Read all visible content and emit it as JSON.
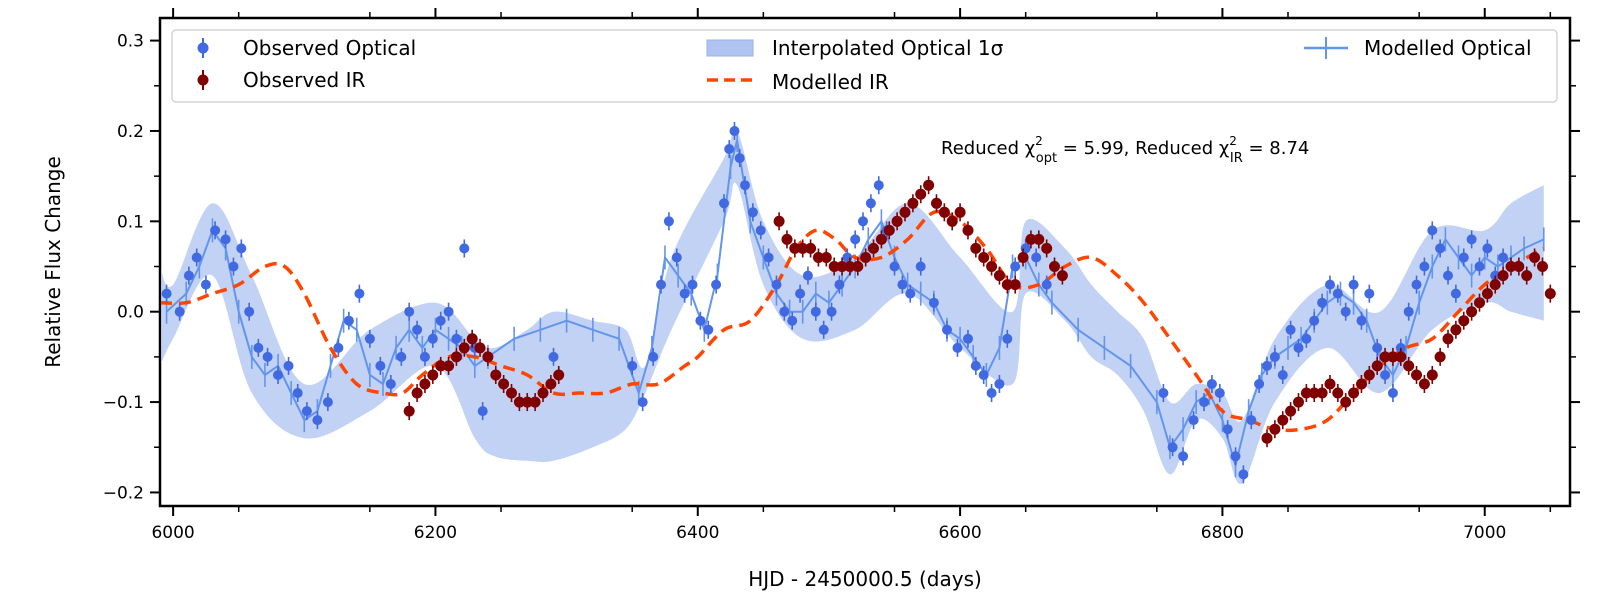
{
  "chart_data": {
    "type": "line",
    "xlabel": "HJD - 2450000.5 (days)",
    "ylabel": "Relative Flux Change",
    "xlim": [
      5990,
      7065
    ],
    "ylim": [
      -0.215,
      0.325
    ],
    "xticks": [
      6000,
      6200,
      6400,
      6600,
      6800,
      7000
    ],
    "xtick_labels": [
      "6000",
      "6200",
      "6400",
      "6600",
      "6800",
      "7000"
    ],
    "yticks": [
      -0.2,
      -0.1,
      0.0,
      0.1,
      0.2,
      0.3
    ],
    "ytick_labels": [
      "−0.2",
      "−0.1",
      "0.0",
      "0.1",
      "0.2",
      "0.3"
    ],
    "legend_location": "top",
    "legend": {
      "observed_optical": "Observed Optical",
      "observed_ir": "Observed IR",
      "interpolated_band": "Interpolated Optical 1σ",
      "modelled_ir": "Modelled IR",
      "modelled_optical": "Modelled Optical"
    },
    "annotation": {
      "chi_opt_prefix": "Reduced χ",
      "chi_opt_sub": "opt",
      "chi_opt_value": " = 5.99, Reduced χ",
      "chi_ir_sub": "IR",
      "chi_ir_value": " = 8.74"
    },
    "colors": {
      "observed_optical": "#4169e1",
      "observed_ir": "#800000",
      "interpolated_band": "#aec3f0",
      "modelled_optical": "#6495ed",
      "modelled_ir": "#ff4500"
    },
    "series": [
      {
        "name": "Observed Optical",
        "x": [
          5995,
          6005,
          6012,
          6018,
          6025,
          6032,
          6040,
          6046,
          6052,
          6058,
          6065,
          6072,
          6080,
          6088,
          6095,
          6102,
          6110,
          6118,
          6126,
          6134,
          6142,
          6150,
          6158,
          6166,
          6174,
          6180,
          6186,
          6192,
          6198,
          6204,
          6210,
          6216,
          6222,
          6230,
          6236,
          6290,
          6350,
          6358,
          6366,
          6372,
          6378,
          6384,
          6390,
          6396,
          6402,
          6408,
          6414,
          6420,
          6424,
          6428,
          6432,
          6436,
          6442,
          6448,
          6454,
          6460,
          6466,
          6472,
          6478,
          6484,
          6490,
          6496,
          6502,
          6508,
          6514,
          6520,
          6526,
          6532,
          6538,
          6544,
          6550,
          6556,
          6562,
          6570,
          6580,
          6590,
          6598,
          6606,
          6612,
          6618,
          6624,
          6630,
          6636,
          6642,
          6650,
          6658,
          6666,
          6755,
          6762,
          6770,
          6778,
          6786,
          6792,
          6798,
          6804,
          6810,
          6816,
          6822,
          6828,
          6834,
          6840,
          6846,
          6852,
          6858,
          6864,
          6870,
          6876,
          6882,
          6888,
          6894,
          6900,
          6906,
          6912,
          6918,
          6924,
          6930,
          6936,
          6942,
          6948,
          6954,
          6960,
          6966,
          6972,
          6978,
          6984,
          6990,
          6996,
          7002,
          7008,
          7014
        ],
        "y": [
          0.02,
          0.0,
          0.04,
          0.06,
          0.03,
          0.09,
          0.08,
          0.05,
          0.07,
          0.0,
          -0.04,
          -0.05,
          -0.07,
          -0.06,
          -0.09,
          -0.11,
          -0.12,
          -0.1,
          -0.04,
          -0.01,
          0.02,
          -0.03,
          -0.06,
          -0.08,
          -0.05,
          0.0,
          -0.02,
          -0.05,
          -0.03,
          -0.01,
          0.0,
          -0.03,
          0.07,
          -0.04,
          -0.11,
          -0.05,
          -0.06,
          -0.1,
          -0.05,
          0.03,
          0.1,
          0.06,
          0.02,
          0.03,
          -0.01,
          -0.02,
          0.03,
          0.12,
          0.18,
          0.2,
          0.17,
          0.14,
          0.11,
          0.09,
          0.06,
          0.03,
          0.0,
          -0.01,
          0.02,
          0.04,
          0.0,
          -0.02,
          0.0,
          0.03,
          0.06,
          0.08,
          0.1,
          0.12,
          0.14,
          0.09,
          0.05,
          0.03,
          0.02,
          0.05,
          0.01,
          -0.02,
          -0.04,
          -0.03,
          -0.06,
          -0.07,
          -0.09,
          -0.08,
          -0.03,
          0.05,
          0.07,
          0.06,
          0.03,
          -0.09,
          -0.15,
          -0.16,
          -0.12,
          -0.1,
          -0.08,
          -0.09,
          -0.13,
          -0.16,
          -0.18,
          -0.12,
          -0.08,
          -0.06,
          -0.05,
          -0.07,
          -0.02,
          -0.04,
          -0.03,
          -0.01,
          0.01,
          0.03,
          0.02,
          0.0,
          0.03,
          -0.01,
          0.02,
          -0.04,
          -0.07,
          -0.09,
          -0.04,
          0.0,
          0.03,
          0.05,
          0.09,
          0.07,
          0.04,
          0.02,
          0.06,
          0.08,
          0.05,
          0.07,
          0.04,
          0.06
        ]
      },
      {
        "name": "Observed IR",
        "x": [
          6180,
          6186,
          6192,
          6198,
          6204,
          6210,
          6216,
          6222,
          6228,
          6234,
          6240,
          6246,
          6252,
          6258,
          6264,
          6270,
          6276,
          6282,
          6288,
          6294,
          6462,
          6468,
          6474,
          6480,
          6486,
          6492,
          6498,
          6504,
          6510,
          6516,
          6522,
          6528,
          6534,
          6540,
          6546,
          6552,
          6558,
          6564,
          6570,
          6576,
          6582,
          6588,
          6594,
          6600,
          6606,
          6612,
          6618,
          6624,
          6630,
          6636,
          6642,
          6648,
          6654,
          6660,
          6666,
          6672,
          6678,
          6834,
          6840,
          6846,
          6852,
          6858,
          6864,
          6870,
          6876,
          6882,
          6888,
          6894,
          6900,
          6906,
          6912,
          6918,
          6924,
          6930,
          6936,
          6942,
          6948,
          6954,
          6960,
          6966,
          6972,
          6978,
          6984,
          6990,
          6996,
          7002,
          7008,
          7014,
          7020,
          7026,
          7032,
          7038,
          7044,
          7050
        ],
        "y": [
          -0.11,
          -0.09,
          -0.08,
          -0.07,
          -0.06,
          -0.06,
          -0.05,
          -0.04,
          -0.03,
          -0.04,
          -0.05,
          -0.07,
          -0.08,
          -0.09,
          -0.1,
          -0.1,
          -0.1,
          -0.09,
          -0.08,
          -0.07,
          0.1,
          0.08,
          0.07,
          0.07,
          0.07,
          0.06,
          0.06,
          0.05,
          0.05,
          0.05,
          0.05,
          0.06,
          0.07,
          0.08,
          0.09,
          0.1,
          0.11,
          0.12,
          0.13,
          0.14,
          0.12,
          0.11,
          0.1,
          0.11,
          0.09,
          0.07,
          0.06,
          0.05,
          0.04,
          0.03,
          0.03,
          0.06,
          0.08,
          0.08,
          0.07,
          0.05,
          0.04,
          -0.14,
          -0.13,
          -0.12,
          -0.11,
          -0.1,
          -0.09,
          -0.09,
          -0.09,
          -0.08,
          -0.09,
          -0.1,
          -0.09,
          -0.08,
          -0.07,
          -0.06,
          -0.05,
          -0.05,
          -0.05,
          -0.06,
          -0.07,
          -0.08,
          -0.07,
          -0.05,
          -0.03,
          -0.02,
          -0.01,
          0.0,
          0.01,
          0.02,
          0.03,
          0.04,
          0.05,
          0.05,
          0.04,
          0.06,
          0.05,
          0.02
        ]
      },
      {
        "name": "Modelled IR",
        "x": [
          5990,
          6010,
          6030,
          6050,
          6070,
          6085,
          6100,
          6120,
          6140,
          6160,
          6175,
          6190,
          6210,
          6230,
          6250,
          6270,
          6290,
          6310,
          6330,
          6350,
          6370,
          6390,
          6400,
          6420,
          6440,
          6460,
          6475,
          6490,
          6505,
          6520,
          6540,
          6560,
          6580,
          6600,
          6620,
          6640,
          6660,
          6680,
          6700,
          6720,
          6740,
          6760,
          6780,
          6800,
          6820,
          6840,
          6860,
          6880,
          6900,
          6920,
          6940,
          6960,
          6980,
          7000,
          7020,
          7045
        ],
        "y": [
          0.01,
          0.01,
          0.02,
          0.03,
          0.05,
          0.05,
          0.02,
          -0.04,
          -0.08,
          -0.09,
          -0.09,
          -0.07,
          -0.05,
          -0.05,
          -0.06,
          -0.07,
          -0.09,
          -0.09,
          -0.09,
          -0.08,
          -0.08,
          -0.06,
          -0.05,
          -0.02,
          -0.01,
          0.03,
          0.07,
          0.09,
          0.08,
          0.06,
          0.06,
          0.08,
          0.11,
          0.1,
          0.07,
          0.03,
          0.03,
          0.05,
          0.06,
          0.04,
          0.01,
          -0.03,
          -0.07,
          -0.11,
          -0.12,
          -0.13,
          -0.13,
          -0.12,
          -0.09,
          -0.06,
          -0.04,
          -0.03,
          0.0,
          0.03,
          0.05,
          0.07
        ]
      },
      {
        "name": "Modelled Optical",
        "x": [
          5995,
          6010,
          6020,
          6030,
          6040,
          6050,
          6060,
          6070,
          6080,
          6090,
          6100,
          6110,
          6120,
          6130,
          6140,
          6150,
          6160,
          6170,
          6180,
          6190,
          6200,
          6210,
          6220,
          6230,
          6240,
          6260,
          6280,
          6300,
          6320,
          6340,
          6355,
          6365,
          6375,
          6385,
          6395,
          6405,
          6415,
          6425,
          6430,
          6440,
          6450,
          6460,
          6470,
          6480,
          6490,
          6500,
          6510,
          6520,
          6530,
          6540,
          6550,
          6560,
          6570,
          6580,
          6590,
          6600,
          6610,
          6620,
          6630,
          6640,
          6650,
          6660,
          6670,
          6690,
          6710,
          6730,
          6750,
          6760,
          6770,
          6780,
          6790,
          6800,
          6810,
          6820,
          6830,
          6840,
          6850,
          6860,
          6870,
          6880,
          6890,
          6900,
          6910,
          6920,
          6930,
          6940,
          6950,
          6960,
          6970,
          6980,
          6990,
          7000,
          7010,
          7020,
          7030,
          7045
        ],
        "y": [
          0.0,
          0.02,
          0.05,
          0.09,
          0.07,
          0.0,
          -0.05,
          -0.07,
          -0.06,
          -0.09,
          -0.12,
          -0.11,
          -0.06,
          -0.01,
          -0.02,
          -0.07,
          -0.08,
          -0.04,
          -0.02,
          -0.04,
          -0.02,
          -0.03,
          -0.04,
          -0.06,
          -0.05,
          -0.03,
          -0.02,
          -0.01,
          -0.02,
          -0.03,
          -0.09,
          -0.04,
          0.06,
          0.04,
          0.02,
          -0.02,
          0.04,
          0.16,
          0.19,
          0.1,
          0.06,
          0.02,
          0.0,
          0.0,
          0.02,
          0.01,
          0.03,
          0.05,
          0.08,
          0.1,
          0.06,
          0.03,
          0.02,
          0.01,
          -0.02,
          -0.03,
          -0.05,
          -0.07,
          -0.04,
          0.05,
          0.06,
          0.03,
          0.01,
          -0.02,
          -0.04,
          -0.06,
          -0.1,
          -0.15,
          -0.13,
          -0.1,
          -0.09,
          -0.12,
          -0.17,
          -0.11,
          -0.07,
          -0.05,
          -0.04,
          -0.03,
          -0.01,
          0.01,
          0.02,
          0.01,
          -0.01,
          -0.05,
          -0.07,
          -0.04,
          0.01,
          0.05,
          0.08,
          0.06,
          0.04,
          0.06,
          0.05,
          0.06,
          0.07,
          0.08
        ]
      },
      {
        "name": "Interpolated Optical 1σ",
        "x": [
          5990,
          6000,
          6030,
          6060,
          6100,
          6150,
          6200,
          6230,
          6245,
          6270,
          6290,
          6320,
          6345,
          6360,
          6380,
          6420,
          6430,
          6450,
          6480,
          6520,
          6560,
          6600,
          6640,
          6650,
          6680,
          6700,
          6720,
          6740,
          6760,
          6780,
          6800,
          6815,
          6840,
          6880,
          6920,
          6960,
          7000,
          7020,
          7045
        ],
        "upper": [
          0.05,
          0.03,
          0.12,
          0.04,
          -0.08,
          -0.02,
          0.01,
          -0.03,
          -0.04,
          -0.02,
          0.0,
          -0.01,
          -0.02,
          -0.06,
          0.06,
          0.17,
          0.2,
          0.1,
          0.04,
          0.06,
          0.12,
          0.06,
          0.0,
          0.1,
          0.07,
          0.03,
          0.0,
          -0.03,
          -0.1,
          -0.08,
          -0.09,
          -0.12,
          -0.03,
          0.03,
          0.0,
          0.09,
          0.09,
          0.12,
          0.14
        ],
        "lower": [
          -0.06,
          -0.03,
          0.04,
          -0.09,
          -0.14,
          -0.11,
          -0.06,
          -0.14,
          -0.16,
          -0.165,
          -0.165,
          -0.15,
          -0.13,
          -0.09,
          -0.02,
          0.1,
          0.14,
          0.03,
          -0.03,
          -0.02,
          0.02,
          -0.04,
          -0.08,
          0.02,
          -0.01,
          -0.05,
          -0.07,
          -0.11,
          -0.18,
          -0.12,
          -0.14,
          -0.19,
          -0.1,
          -0.04,
          -0.09,
          -0.02,
          0.01,
          -0.0,
          -0.01
        ]
      }
    ]
  }
}
